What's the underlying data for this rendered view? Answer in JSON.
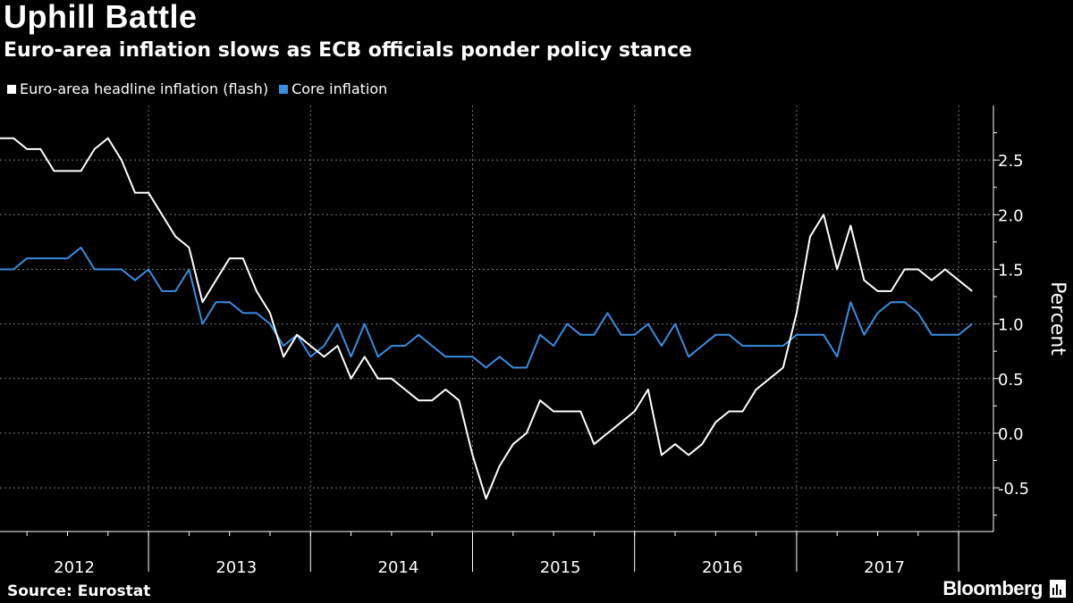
{
  "header": {
    "title": "Uphill Battle",
    "subtitle": "Euro-area inflation slows as ECB officials ponder policy stance"
  },
  "legend": [
    {
      "label": "Euro-area headline inflation (flash)",
      "color": "#ffffff"
    },
    {
      "label": "Core inflation",
      "color": "#3b8de0"
    }
  ],
  "footer": {
    "source": "Source: Eurostat",
    "brand": "Bloomberg"
  },
  "chart_data": {
    "type": "line",
    "title": "Uphill Battle",
    "subtitle": "Euro-area inflation slows as ECB officials ponder policy stance",
    "xlabel": "",
    "ylabel": "Percent",
    "ylim": [
      -0.9,
      3.0
    ],
    "yticks": [
      -0.5,
      0.0,
      0.5,
      1.0,
      1.5,
      2.0,
      2.5
    ],
    "ytick_labels": [
      "-0.5",
      "0.0",
      "0.5",
      "1.0",
      "1.5",
      "2.0",
      "2.5"
    ],
    "x_start": "2012-01",
    "x_label_years": [
      "2012",
      "2013",
      "2014",
      "2015",
      "2016",
      "2017"
    ],
    "grid": true,
    "series": [
      {
        "name": "Euro-area headline inflation (flash)",
        "color": "#ffffff",
        "values": [
          2.7,
          2.7,
          2.6,
          2.6,
          2.4,
          2.4,
          2.4,
          2.6,
          2.7,
          2.5,
          2.2,
          2.2,
          2.0,
          1.8,
          1.7,
          1.2,
          1.4,
          1.6,
          1.6,
          1.3,
          1.1,
          0.7,
          0.9,
          0.8,
          0.7,
          0.8,
          0.5,
          0.7,
          0.5,
          0.5,
          0.4,
          0.3,
          0.3,
          0.4,
          0.3,
          -0.2,
          -0.6,
          -0.3,
          -0.1,
          0.0,
          0.3,
          0.2,
          0.2,
          0.2,
          -0.1,
          0.0,
          0.1,
          0.2,
          0.4,
          -0.2,
          -0.1,
          -0.2,
          -0.1,
          0.1,
          0.2,
          0.2,
          0.4,
          0.5,
          0.6,
          1.1,
          1.8,
          2.0,
          1.5,
          1.9,
          1.4,
          1.3,
          1.3,
          1.5,
          1.5,
          1.4,
          1.5,
          1.4,
          1.3
        ]
      },
      {
        "name": "Core inflation",
        "color": "#3b8de0",
        "values": [
          1.5,
          1.5,
          1.6,
          1.6,
          1.6,
          1.6,
          1.7,
          1.5,
          1.5,
          1.5,
          1.4,
          1.5,
          1.3,
          1.3,
          1.5,
          1.0,
          1.2,
          1.2,
          1.1,
          1.1,
          1.0,
          0.8,
          0.9,
          0.7,
          0.8,
          1.0,
          0.7,
          1.0,
          0.7,
          0.8,
          0.8,
          0.9,
          0.8,
          0.7,
          0.7,
          0.7,
          0.6,
          0.7,
          0.6,
          0.6,
          0.9,
          0.8,
          1.0,
          0.9,
          0.9,
          1.1,
          0.9,
          0.9,
          1.0,
          0.8,
          1.0,
          0.7,
          0.8,
          0.9,
          0.9,
          0.8,
          0.8,
          0.8,
          0.8,
          0.9,
          0.9,
          0.9,
          0.7,
          1.2,
          0.9,
          1.1,
          1.2,
          1.2,
          1.1,
          0.9,
          0.9,
          0.9,
          1.0
        ]
      }
    ]
  }
}
